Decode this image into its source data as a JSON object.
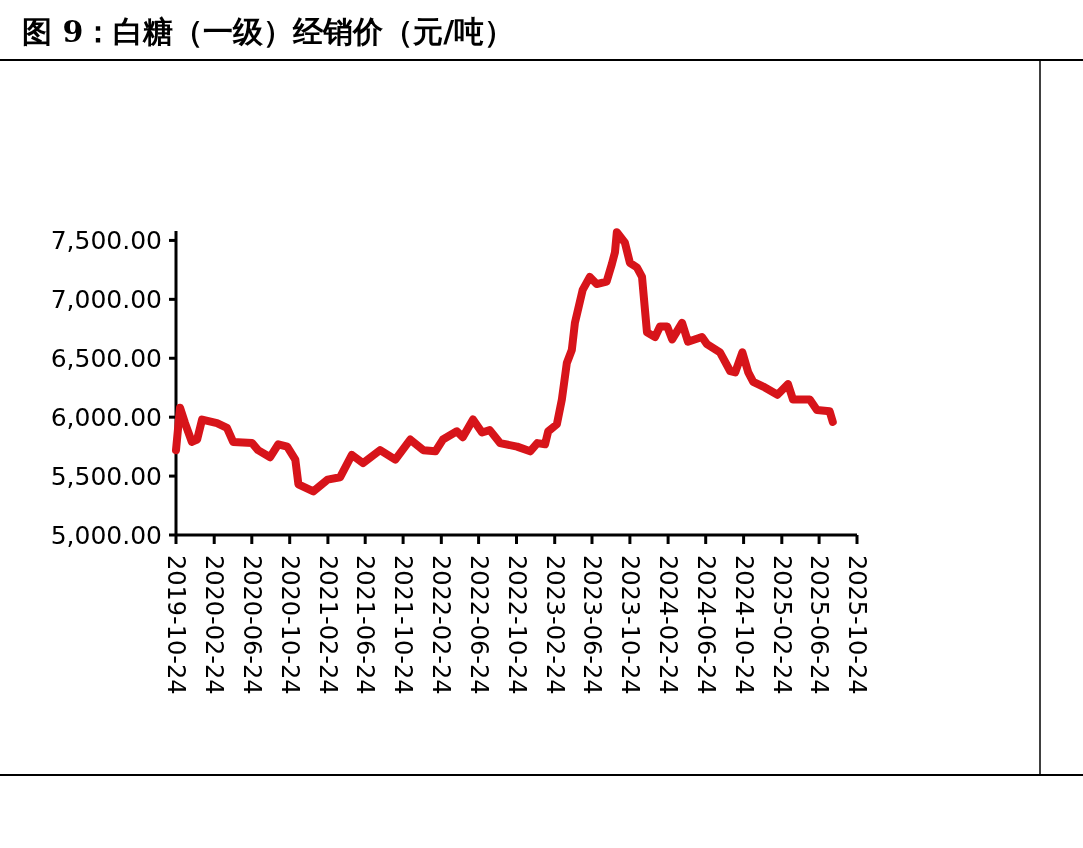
{
  "chart_data": {
    "type": "line",
    "title": "图 9：白糖（一级）经销价（元/吨）",
    "xlim": [
      "2019-10-24",
      "2025-10-24"
    ],
    "xticks": [
      "2019-10-24",
      "2020-02-24",
      "2020-06-24",
      "2020-10-24",
      "2021-02-24",
      "2021-06-24",
      "2021-10-24",
      "2022-02-24",
      "2022-06-24",
      "2022-10-24",
      "2023-02-24",
      "2023-06-24",
      "2023-10-24",
      "2024-02-24",
      "2024-06-24",
      "2024-10-24",
      "2025-02-24",
      "2025-06-24",
      "2025-10-24"
    ],
    "ylim": [
      5000,
      7580
    ],
    "yticks": [
      {
        "value": 5000,
        "label": "5,000.00"
      },
      {
        "value": 5500,
        "label": "5,500.00"
      },
      {
        "value": 6000,
        "label": "6,000.00"
      },
      {
        "value": 6500,
        "label": "6,500.00"
      },
      {
        "value": 7000,
        "label": "7,000.00"
      },
      {
        "value": 7500,
        "label": "7,500.00"
      }
    ],
    "grid": false,
    "marker": "none",
    "line_style": "solid",
    "x": [
      "2019-10-24",
      "2019-11-06",
      "2019-11-22",
      "2019-12-14",
      "2019-12-31",
      "2020-01-16",
      "2020-03-04",
      "2020-04-05",
      "2020-04-25",
      "2020-06-25",
      "2020-07-14",
      "2020-08-22",
      "2020-09-17",
      "2020-10-16",
      "2020-11-11",
      "2020-11-21",
      "2021-01-08",
      "2021-02-23",
      "2021-04-04",
      "2021-05-12",
      "2021-06-17",
      "2021-08-11",
      "2021-09-29",
      "2021-11-16",
      "2021-12-28",
      "2022-02-05",
      "2022-03-01",
      "2022-04-15",
      "2022-05-04",
      "2022-06-06",
      "2022-07-05",
      "2022-07-30",
      "2022-09-01",
      "2022-10-26",
      "2022-12-07",
      "2022-12-30",
      "2023-01-24",
      "2023-02-03",
      "2023-03-03",
      "2023-03-19",
      "2023-04-04",
      "2023-04-20",
      "2023-04-30",
      "2023-05-25",
      "2023-06-17",
      "2023-07-09",
      "2023-08-10",
      "2023-08-27",
      "2023-09-06",
      "2023-09-12",
      "2023-10-08",
      "2023-10-24",
      "2023-11-16",
      "2023-12-02",
      "2023-12-18",
      "2024-01-13",
      "2024-01-29",
      "2024-02-21",
      "2024-03-08",
      "2024-04-09",
      "2024-04-28",
      "2024-06-12",
      "2024-06-28",
      "2024-08-09",
      "2024-09-11",
      "2024-09-27",
      "2024-10-20",
      "2024-11-08",
      "2024-11-24",
      "2024-12-26",
      "2025-02-10",
      "2025-03-16",
      "2025-04-01",
      "2025-05-25",
      "2025-06-17",
      "2025-07-28",
      "2025-08-07"
    ],
    "series": [
      {
        "color": "#d7141a",
        "values": [
          5720,
          6080,
          5950,
          5790,
          5810,
          5980,
          5950,
          5910,
          5790,
          5780,
          5720,
          5660,
          5770,
          5750,
          5640,
          5430,
          5370,
          5470,
          5490,
          5680,
          5610,
          5720,
          5640,
          5810,
          5720,
          5710,
          5810,
          5880,
          5830,
          5980,
          5870,
          5890,
          5780,
          5750,
          5710,
          5780,
          5770,
          5880,
          5940,
          6150,
          6460,
          6570,
          6800,
          7080,
          7190,
          7130,
          7150,
          7300,
          7400,
          7570,
          7480,
          7310,
          7270,
          7190,
          6720,
          6680,
          6770,
          6770,
          6660,
          6800,
          6640,
          6680,
          6620,
          6550,
          6390,
          6380,
          6550,
          6380,
          6300,
          6260,
          6190,
          6280,
          6150,
          6150,
          6060,
          6050,
          5960
        ]
      }
    ]
  }
}
